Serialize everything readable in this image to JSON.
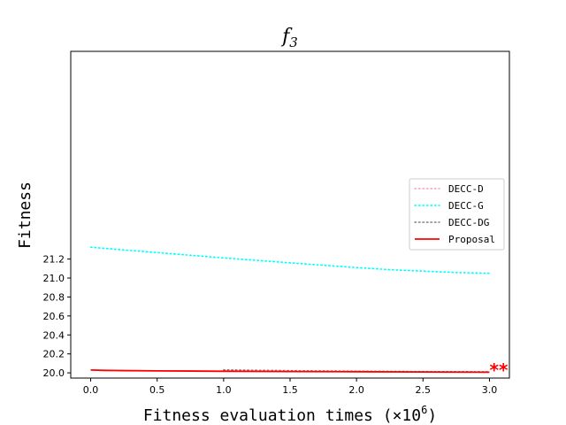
{
  "chart_data": {
    "type": "line",
    "title": "f",
    "title_subscript": "3",
    "xlabel": "Fitness evaluation times (×10",
    "xlabel_superscript": "6",
    "xlabel_suffix": ")",
    "ylabel": "Fitness",
    "xlim": [
      -0.15,
      3.15
    ],
    "ylim": [
      19.945,
      23.39
    ],
    "x_ticks": [
      0.0,
      0.5,
      1.0,
      1.5,
      2.0,
      2.5,
      3.0
    ],
    "x_tick_labels": [
      "0.0",
      "0.5",
      "1.0",
      "1.5",
      "2.0",
      "2.5",
      "3.0"
    ],
    "y_ticks": [
      20.0,
      20.2,
      20.4,
      20.6,
      20.8,
      21.0,
      21.2
    ],
    "y_tick_labels": [
      "20.0",
      "20.2",
      "20.4",
      "20.6",
      "20.8",
      "21.0",
      "21.2"
    ],
    "grid": false,
    "legend_position": "right",
    "series": [
      {
        "name": "DECC-D",
        "color": "#ff9eb5",
        "dash": "dotted",
        "x": [
          1.0,
          1.5,
          2.0,
          2.5,
          3.0
        ],
        "y": [
          20.03,
          20.022,
          20.016,
          20.012,
          20.01
        ]
      },
      {
        "name": "DECC-G",
        "color": "#00ffff",
        "dash": "dotted",
        "x": [
          0.0,
          0.25,
          0.5,
          0.75,
          1.0,
          1.25,
          1.5,
          1.75,
          2.0,
          2.25,
          2.5,
          2.75,
          3.0
        ],
        "y": [
          21.325,
          21.296,
          21.268,
          21.24,
          21.212,
          21.186,
          21.16,
          21.135,
          21.11,
          21.088,
          21.073,
          21.058,
          21.05
        ]
      },
      {
        "name": "DECC-DG",
        "color": "#808080",
        "dash": "dotted",
        "x": [
          1.0,
          1.5,
          2.0,
          2.5,
          3.0
        ],
        "y": [
          20.031,
          20.023,
          20.017,
          20.013,
          20.011
        ]
      },
      {
        "name": "Proposal",
        "color": "#ff0000",
        "dash": "solid",
        "x": [
          0.0,
          0.1,
          0.25,
          0.5,
          0.75,
          1.0,
          1.5,
          2.0,
          2.5,
          3.0
        ],
        "y": [
          20.03,
          20.026,
          20.024,
          20.021,
          20.019,
          20.017,
          20.014,
          20.012,
          20.009,
          20.007
        ]
      }
    ],
    "annotations": [
      {
        "text": "**",
        "x": 3.07,
        "y": 20.02,
        "color": "#ff0000"
      }
    ]
  }
}
